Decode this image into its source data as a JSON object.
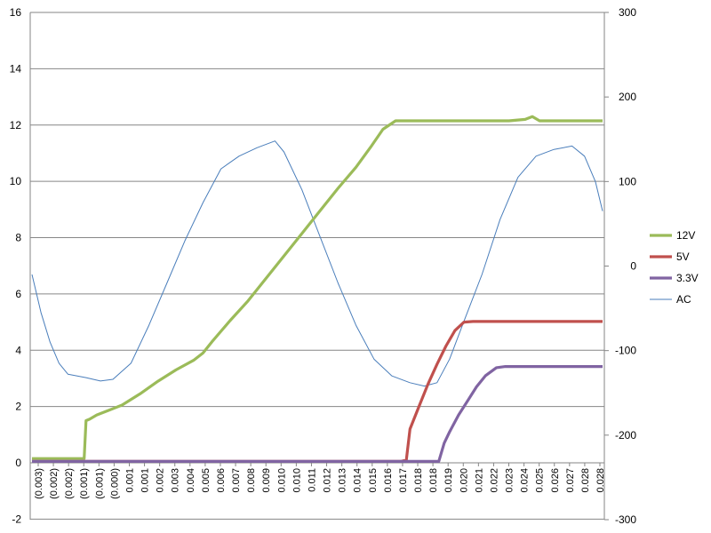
{
  "chart_data": {
    "type": "line",
    "grid": true,
    "legend_position": "right",
    "ylim": [
      -2,
      16
    ],
    "yticks": [
      -2,
      0,
      2,
      4,
      6,
      8,
      10,
      12,
      14,
      16
    ],
    "y2lim": [
      -300,
      300
    ],
    "y2ticks": [
      -300,
      -200,
      -100,
      0,
      100,
      200,
      300
    ],
    "xlim": [
      -0.003,
      0.0287
    ],
    "categories": [
      "(0.003)",
      "(0.002)",
      "(0.002)",
      "(0.001)",
      "(0.001)",
      "(0.000)",
      "0.001",
      "0.001",
      "0.002",
      "0.003",
      "0.004",
      "0.005",
      "0.006",
      "0.007",
      "0.008",
      "0.009",
      "0.010",
      "0.010",
      "0.011",
      "0.012",
      "0.013",
      "0.014",
      "0.015",
      "0.016",
      "0.017",
      "0.018",
      "0.018",
      "0.019",
      "0.020",
      "0.021",
      "0.022",
      "0.023",
      "0.024",
      "0.025",
      "0.026",
      "0.027",
      "0.028",
      "0.028"
    ],
    "series": [
      {
        "name": "12V",
        "color": "#9BBB59",
        "axis": "left",
        "width": 3.2,
        "points": [
          [
            -0.003,
            0.15
          ],
          [
            -0.0002,
            0.15
          ],
          [
            -0.0001,
            0.15
          ],
          [
            0.0,
            1.5
          ],
          [
            0.0002,
            1.55
          ],
          [
            0.0006,
            1.7
          ],
          [
            0.0012,
            1.85
          ],
          [
            0.002,
            2.05
          ],
          [
            0.003,
            2.45
          ],
          [
            0.004,
            2.9
          ],
          [
            0.005,
            3.3
          ],
          [
            0.006,
            3.65
          ],
          [
            0.0065,
            3.9
          ],
          [
            0.007,
            4.3
          ],
          [
            0.008,
            5.05
          ],
          [
            0.009,
            5.75
          ],
          [
            0.01,
            6.55
          ],
          [
            0.011,
            7.35
          ],
          [
            0.012,
            8.15
          ],
          [
            0.013,
            8.95
          ],
          [
            0.014,
            9.75
          ],
          [
            0.015,
            10.5
          ],
          [
            0.0158,
            11.2
          ],
          [
            0.0165,
            11.85
          ],
          [
            0.0172,
            12.15
          ],
          [
            0.02,
            12.15
          ],
          [
            0.0235,
            12.15
          ],
          [
            0.0244,
            12.2
          ],
          [
            0.0248,
            12.3
          ],
          [
            0.0252,
            12.15
          ],
          [
            0.0287,
            12.15
          ]
        ]
      },
      {
        "name": "5V",
        "color": "#C0504D",
        "axis": "left",
        "width": 3.2,
        "points": [
          [
            -0.003,
            0.05
          ],
          [
            0.0175,
            0.05
          ],
          [
            0.0178,
            0.1
          ],
          [
            0.018,
            1.2
          ],
          [
            0.0185,
            2.0
          ],
          [
            0.019,
            2.8
          ],
          [
            0.0195,
            3.5
          ],
          [
            0.02,
            4.15
          ],
          [
            0.0205,
            4.7
          ],
          [
            0.021,
            5.0
          ],
          [
            0.0215,
            5.02
          ],
          [
            0.0287,
            5.02
          ]
        ]
      },
      {
        "name": "3.3V",
        "color": "#8064A2",
        "axis": "left",
        "width": 3.2,
        "points": [
          [
            -0.003,
            0.05
          ],
          [
            0.0196,
            0.05
          ],
          [
            0.0199,
            0.7
          ],
          [
            0.0202,
            1.1
          ],
          [
            0.0207,
            1.7
          ],
          [
            0.0212,
            2.2
          ],
          [
            0.0217,
            2.7
          ],
          [
            0.0222,
            3.1
          ],
          [
            0.0228,
            3.38
          ],
          [
            0.0233,
            3.42
          ],
          [
            0.0287,
            3.42
          ]
        ]
      },
      {
        "name": "AC",
        "color": "#4A7EBB",
        "axis": "right",
        "width": 1,
        "points": [
          [
            -0.003,
            -10
          ],
          [
            -0.0025,
            -55
          ],
          [
            -0.002,
            -90
          ],
          [
            -0.0015,
            -115
          ],
          [
            -0.001,
            -128
          ],
          [
            0.0,
            -132
          ],
          [
            0.0008,
            -136
          ],
          [
            0.0015,
            -134
          ],
          [
            0.0025,
            -115
          ],
          [
            0.0035,
            -70
          ],
          [
            0.0045,
            -20
          ],
          [
            0.0055,
            30
          ],
          [
            0.0065,
            75
          ],
          [
            0.0075,
            115
          ],
          [
            0.0085,
            130
          ],
          [
            0.0095,
            140
          ],
          [
            0.0105,
            148
          ],
          [
            0.011,
            135
          ],
          [
            0.012,
            90
          ],
          [
            0.013,
            35
          ],
          [
            0.014,
            -20
          ],
          [
            0.015,
            -70
          ],
          [
            0.016,
            -110
          ],
          [
            0.017,
            -130
          ],
          [
            0.018,
            -138
          ],
          [
            0.0188,
            -142
          ],
          [
            0.0195,
            -138
          ],
          [
            0.0202,
            -110
          ],
          [
            0.021,
            -65
          ],
          [
            0.022,
            -10
          ],
          [
            0.023,
            55
          ],
          [
            0.024,
            105
          ],
          [
            0.025,
            130
          ],
          [
            0.026,
            138
          ],
          [
            0.027,
            142
          ],
          [
            0.0277,
            130
          ],
          [
            0.0283,
            100
          ],
          [
            0.0287,
            65
          ]
        ]
      }
    ]
  }
}
